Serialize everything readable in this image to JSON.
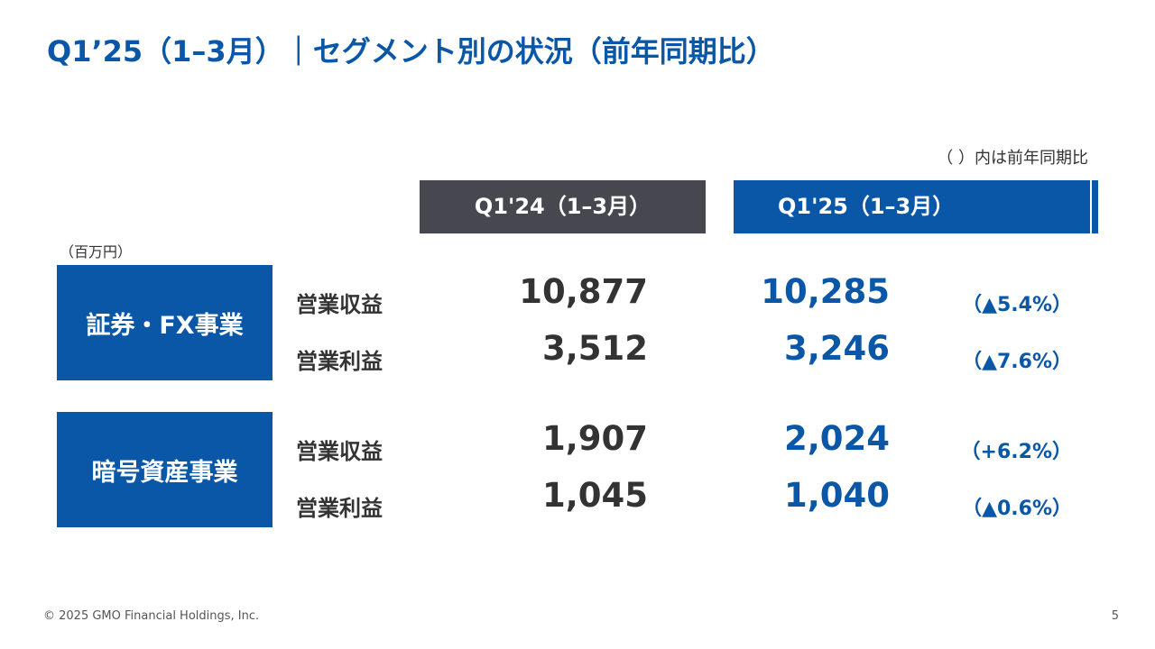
{
  "title": "Q1’25（1–3月）｜セグメント別の状況（前年同期比）",
  "note": "（ ）内は前年同期比",
  "unit": "（百万円）",
  "columns": [
    "Q1'24（1–3月）",
    "Q1'25（1–3月）"
  ],
  "segments": [
    {
      "name": "証券・FX事業",
      "rows": [
        {
          "label": "営業収益",
          "prev": "10,877",
          "curr": "10,285",
          "change": "（▲5.4%）"
        },
        {
          "label": "営業利益",
          "prev": "3,512",
          "curr": "3,246",
          "change": "（▲7.6%）"
        }
      ]
    },
    {
      "name": "暗号資産事業",
      "rows": [
        {
          "label": "営業収益",
          "prev": "1,907",
          "curr": "2,024",
          "change": "（+6.2%）"
        },
        {
          "label": "営業利益",
          "prev": "1,045",
          "curr": "1,040",
          "change": "（▲0.6%）"
        }
      ]
    }
  ],
  "footer": {
    "copyright": "© 2025 GMO Financial Holdings, Inc.",
    "page": "5"
  }
}
